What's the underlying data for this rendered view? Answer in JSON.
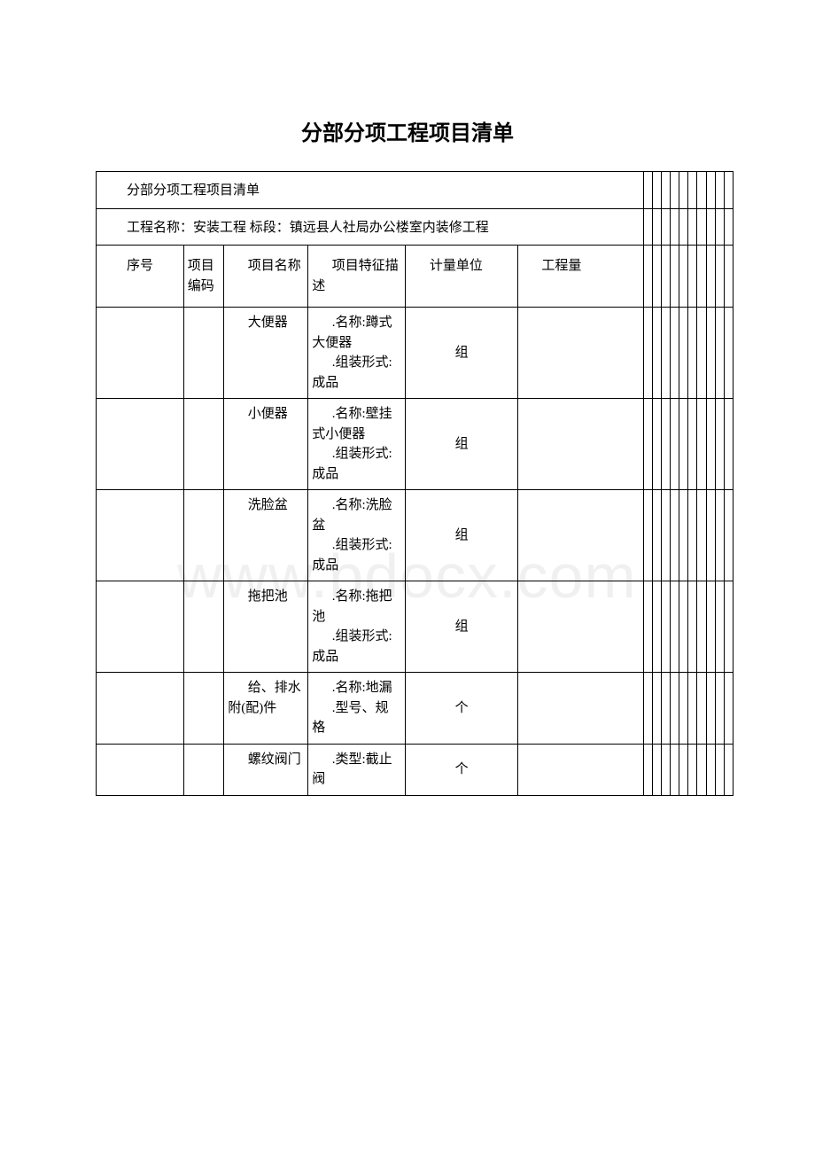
{
  "page": {
    "title": "分部分项工程项目清单"
  },
  "table": {
    "section_title": "分部分项工程项目清单",
    "project_name_line": "工程名称：安装工程 标段：镇远县人社局办公楼室内装修工程",
    "headers": {
      "seq": "序号",
      "code": "项目编码",
      "name": "项目名称",
      "feature": "项目特征描述",
      "unit": "计量单位",
      "qty": "工程量"
    },
    "rows": [
      {
        "seq": "",
        "code": "",
        "name": "大便器",
        "feature": ".名称:蹲式大便器\n.组装形式:成品",
        "unit": "组",
        "qty": ""
      },
      {
        "seq": "",
        "code": "",
        "name": "小便器",
        "feature": ".名称:壁挂式小便器\n.组装形式:成品",
        "unit": "组",
        "qty": ""
      },
      {
        "seq": "",
        "code": "",
        "name": "洗脸盆",
        "feature": ".名称:洗脸盆\n.组装形式:成品",
        "unit": "组",
        "qty": ""
      },
      {
        "seq": "",
        "code": "",
        "name": "拖把池",
        "feature": ".名称:拖把池\n.组装形式:成品",
        "unit": "组",
        "qty": ""
      },
      {
        "seq": "",
        "code": "",
        "name": "给、排水附(配)件",
        "feature": ".名称:地漏\n.型号、规格",
        "unit": "个",
        "qty": ""
      },
      {
        "seq": "",
        "code": "",
        "name": "螺纹阀门",
        "feature": ".类型:截止阀",
        "unit": "个",
        "qty": ""
      }
    ]
  },
  "style": {
    "background_color": "#ffffff",
    "border_color": "#000000",
    "text_color": "#000000",
    "title_fontsize": 24,
    "cell_fontsize": 15,
    "watermark_text": "www.bdocx.com",
    "watermark_color": "rgba(0,0,0,0.06)",
    "tiny_col_count": 10
  }
}
